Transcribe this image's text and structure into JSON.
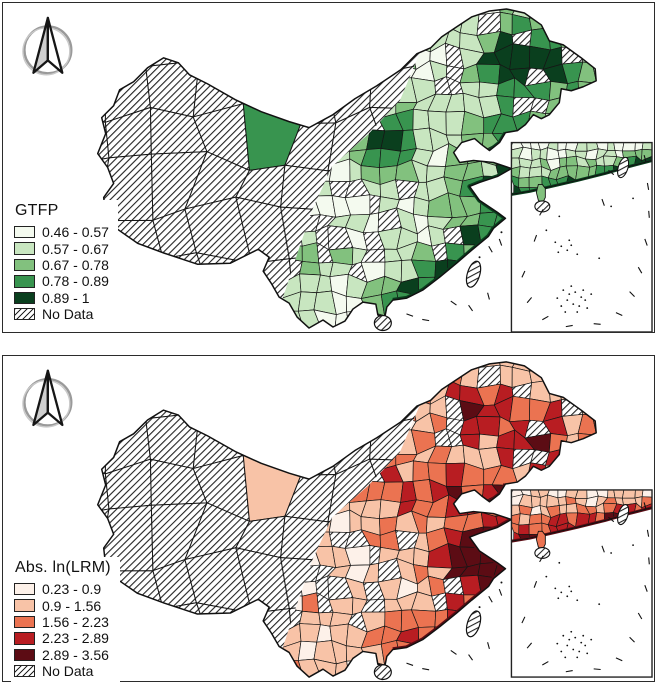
{
  "figure": {
    "type": "choropleth-map-pair",
    "region": "China",
    "panels": [
      {
        "name": "GTFP map",
        "legend_title": "GTFP",
        "classes": [
          {
            "label": "0.46 - 0.57",
            "color": "#f4faef"
          },
          {
            "label": "0.57 - 0.67",
            "color": "#c8e6c0"
          },
          {
            "label": "0.67 - 0.78",
            "color": "#82c17e"
          },
          {
            "label": "0.78 - 0.89",
            "color": "#38944f"
          },
          {
            "label": "0.89 - 1",
            "color": "#0a3f1e"
          },
          {
            "label": "No Data",
            "pattern": "hatch"
          }
        ]
      },
      {
        "name": "Abs. ln(LRM) map",
        "legend_title": "Abs. ln(LRM)",
        "classes": [
          {
            "label": "0.23 - 0.9",
            "color": "#fdf1e9"
          },
          {
            "label": "0.9 - 1.56",
            "color": "#f8c3a7"
          },
          {
            "label": "1.56 - 2.23",
            "color": "#eb7351"
          },
          {
            "label": "2.23 - 2.89",
            "color": "#b81d22"
          },
          {
            "label": "2.89 - 3.56",
            "color": "#5c0c14"
          },
          {
            "label": "No Data",
            "pattern": "hatch"
          }
        ]
      }
    ],
    "icons": {
      "north_arrow": "north-arrow"
    },
    "inset_name": "South China Sea inset",
    "colors": {
      "panel_border": "#2b2b2b",
      "boundary": "#111111",
      "background": "#ffffff"
    }
  }
}
